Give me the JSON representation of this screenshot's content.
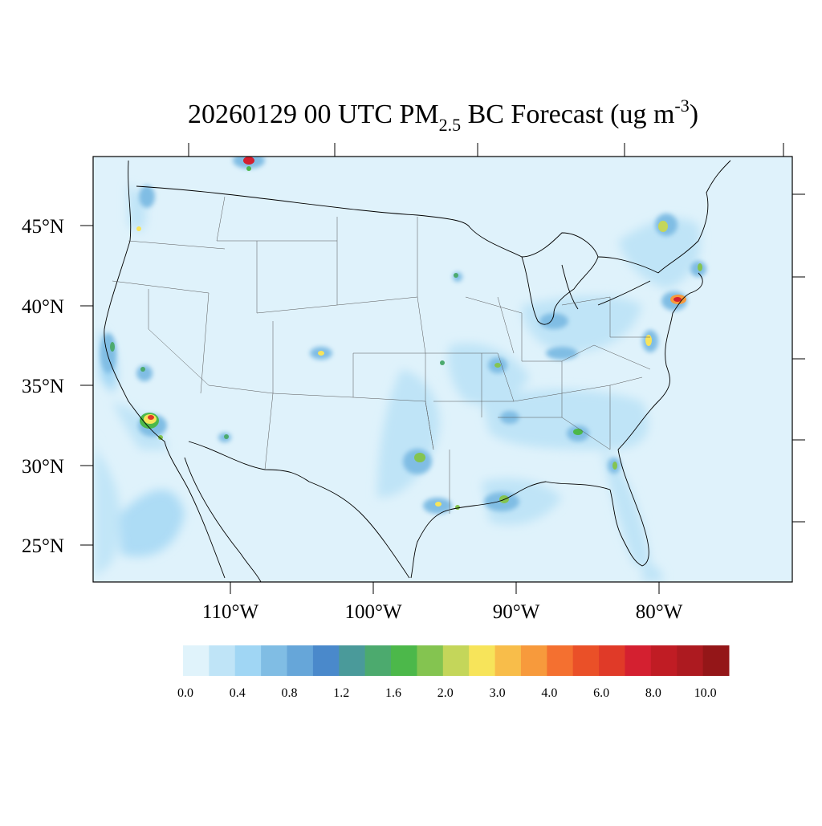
{
  "title": {
    "prefix": "20260129 00 UTC PM",
    "subscript": "2.5",
    "middle": " BC Forecast (ug m",
    "superscript": "-3",
    "suffix": ")"
  },
  "map": {
    "lat_labels": [
      "45°N",
      "40°N",
      "35°N",
      "30°N",
      "25°N"
    ],
    "lon_labels": [
      "110°W",
      "100°W",
      "90°W",
      "80°W"
    ],
    "ocean_color": "#dff2fb"
  },
  "colorbar": {
    "labels": [
      "0.0",
      "0.4",
      "0.8",
      "1.2",
      "1.6",
      "2.0",
      "3.0",
      "4.0",
      "6.0",
      "8.0",
      "10.0"
    ],
    "colors": [
      "#e0f3fb",
      "#bfe4f7",
      "#a0d6f4",
      "#80bde4",
      "#66a6d9",
      "#4a89cb",
      "#4a9a9a",
      "#4caa6e",
      "#4cb84a",
      "#84c450",
      "#c4d65a",
      "#f7e45a",
      "#f8bd4a",
      "#f79a3c",
      "#f47030",
      "#ea5028",
      "#e03a28",
      "#d42030",
      "#c01c24",
      "#ad1a20",
      "#941618"
    ]
  },
  "legend_levels": {
    "low": "#bfe4f7",
    "mid": "#80bde4",
    "high": "#4a89cb"
  }
}
